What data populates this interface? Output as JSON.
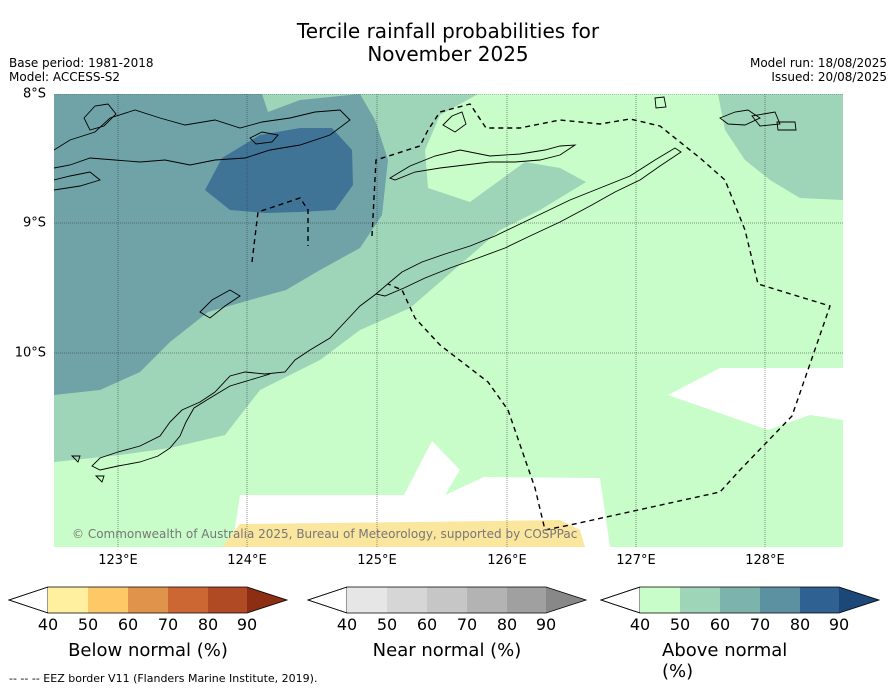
{
  "title": "Tercile rainfall probabilities for\nNovember 2025",
  "title_line1": "Tercile rainfall probabilities for",
  "title_line2": "November 2025",
  "meta_left": {
    "base_period": "Base period: 1981-2018",
    "model": "Model: ACCESS-S2"
  },
  "meta_right": {
    "model_run": "Model run: 18/08/2025",
    "issued": "Issued: 20/08/2025"
  },
  "map": {
    "lat_labels": [
      "8°S",
      "9°S",
      "10°S"
    ],
    "lon_labels": [
      "123°E",
      "124°E",
      "125°E",
      "126°E",
      "127°E",
      "128°E"
    ],
    "copyright": "© Commonwealth of Australia 2025, Bureau of Meteorology, supported by COSPPac"
  },
  "colorbars": [
    {
      "title": "Below normal (%)",
      "ticks": [
        "40",
        "50",
        "60",
        "70",
        "80",
        "90"
      ],
      "colors": [
        "#fff0a0",
        "#fdc966",
        "#e0934a",
        "#cc6633",
        "#b04a25",
        "#8c2d14"
      ]
    },
    {
      "title": "Near normal (%)",
      "ticks": [
        "40",
        "50",
        "60",
        "70",
        "80",
        "90"
      ],
      "colors": [
        "#e6e6e6",
        "#d6d6d6",
        "#c6c6c6",
        "#b3b3b3",
        "#a0a0a0",
        "#888888"
      ]
    },
    {
      "title": "Above normal (%)",
      "ticks": [
        "40",
        "50",
        "60",
        "70",
        "80",
        "90"
      ],
      "colors": [
        "#c8fcc8",
        "#9ed4b8",
        "#7db3ad",
        "#5b91a0",
        "#2f6292",
        "#1b4878"
      ]
    }
  ],
  "footnote": "-- -- -- EEZ border V11 (Flanders Marine Institute, 2019).",
  "colors": {
    "above_40": "#c8fcc8",
    "above_50": "#9ed4b8",
    "above_60": "#6fa3a7",
    "above_70": "#3f7497",
    "below_40": "#fbe69e"
  }
}
